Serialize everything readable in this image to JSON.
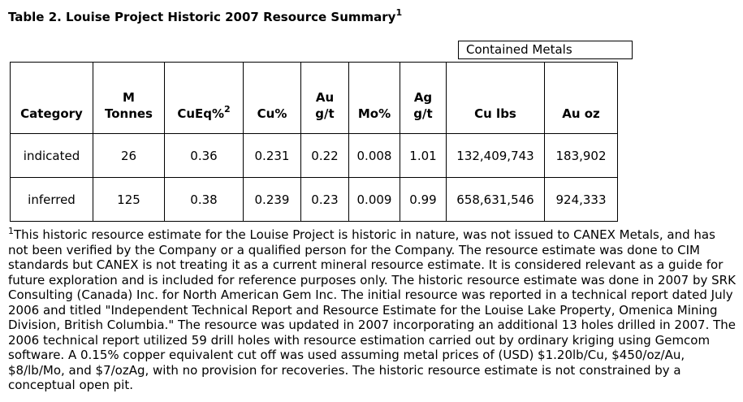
{
  "title": {
    "text": "Table 2. Louise Project Historic 2007 Resource Summary",
    "footnote_ref": "1"
  },
  "contained_metals_label": "Contained Metals",
  "table": {
    "headers": [
      {
        "line1": "",
        "line2": "Category",
        "sup": ""
      },
      {
        "line1": "M",
        "line2": "Tonnes",
        "sup": ""
      },
      {
        "line1": "",
        "line2": "CuEq%",
        "sup": "2"
      },
      {
        "line1": "",
        "line2": "Cu%",
        "sup": ""
      },
      {
        "line1": "Au",
        "line2": "g/t",
        "sup": ""
      },
      {
        "line1": "",
        "line2": "Mo%",
        "sup": ""
      },
      {
        "line1": "Ag",
        "line2": "g/t",
        "sup": ""
      },
      {
        "line1": "",
        "line2": "Cu lbs",
        "sup": ""
      },
      {
        "line1": "",
        "line2": "Au oz",
        "sup": ""
      }
    ],
    "rows": [
      [
        "indicated",
        "26",
        "0.36",
        "0.231",
        "0.22",
        "0.008",
        "1.01",
        "132,409,743",
        "183,902"
      ],
      [
        "inferred",
        "125",
        "0.38",
        "0.239",
        "0.23",
        "0.009",
        "0.99",
        "658,631,546",
        "924,333"
      ]
    ]
  },
  "footnote": {
    "marker": "1",
    "text": "This historic resource estimate for the Louise Project is historic in nature, was not issued to CANEX Metals, and has not been verified by the Company or a qualified person for the Company. The resource estimate was done to CIM standards but CANEX is not treating it as a current mineral resource estimate. It is considered relevant as a guide for future exploration and is included for reference purposes only. The historic resource estimate was done in 2007 by SRK Consulting (Canada) Inc. for North American Gem Inc. The initial resource was reported in a technical report dated July 2006 and titled \"Independent Technical Report and Resource Estimate for the Louise Lake Property, Omenica Mining Division, British Columbia.\" The resource was updated in 2007 incorporating an additional 13 holes drilled in 2007. The 2006 technical report utilized 59 drill holes with resource estimation carried out by ordinary kriging using Gemcom software. A 0.15% copper equivalent cut off was used assuming metal prices of (USD) $1.20lb/Cu, $450/oz/Au, $8/lb/Mo, and $7/ozAg, with no provision for recoveries. The historic resource estimate is not constrained by a conceptual open pit."
  }
}
